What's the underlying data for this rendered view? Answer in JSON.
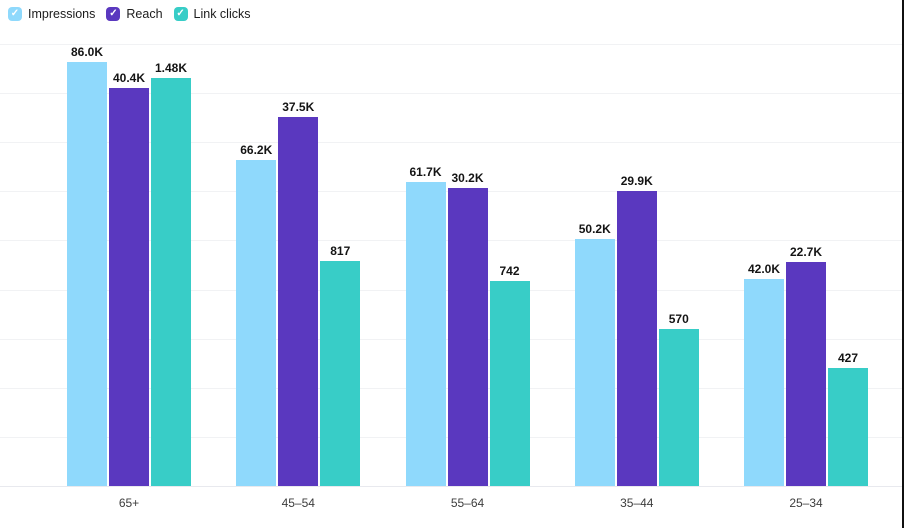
{
  "legend": {
    "items": [
      {
        "label": "Impressions",
        "color": "#8FD9FC"
      },
      {
        "label": "Reach",
        "color": "#5A38BF"
      },
      {
        "label": "Link clicks",
        "color": "#38CDC7"
      }
    ]
  },
  "chart_data": {
    "type": "bar",
    "categories": [
      "65+",
      "45–54",
      "55–64",
      "35–44",
      "25–34"
    ],
    "series": [
      {
        "name": "Impressions",
        "color": "#8FD9FC",
        "values": [
          86000,
          66200,
          61700,
          50200,
          42000
        ],
        "labels": [
          "86.0K",
          "66.2K",
          "61.7K",
          "50.2K",
          "42.0K"
        ]
      },
      {
        "name": "Reach",
        "color": "#5A38BF",
        "values": [
          40400,
          37500,
          30200,
          29900,
          22700
        ],
        "labels": [
          "40.4K",
          "37.5K",
          "30.2K",
          "29.9K",
          "22.7K"
        ]
      },
      {
        "name": "Link clicks",
        "color": "#38CDC7",
        "values": [
          1480,
          817,
          742,
          570,
          427
        ],
        "labels": [
          "1.48K",
          "817",
          "742",
          "570",
          "427"
        ]
      }
    ],
    "title": "",
    "xlabel": "",
    "ylabel": "",
    "grid": true,
    "legend_position": "top-left",
    "scaling_note": "each series is normalized independently to its own maximum value"
  }
}
